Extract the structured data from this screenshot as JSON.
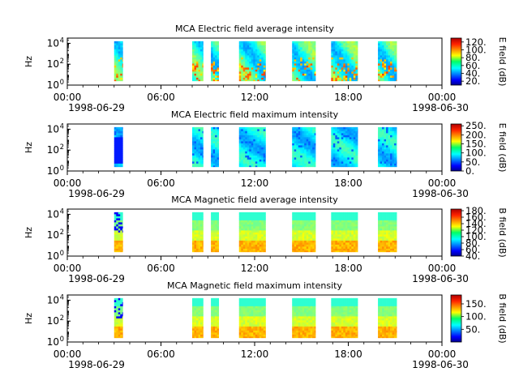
{
  "chart_data": [
    {
      "type": "heatmap",
      "title": "MCA  Electric field average intensity",
      "ylabel": "Hz",
      "colorbar_label": "E field (dB)",
      "colorbar_range": [
        10,
        130
      ],
      "colorbar_ticks": [
        "120.",
        "100.",
        "80.",
        "60.",
        "40.",
        "20."
      ],
      "colorbar_tick_values": [
        120,
        100,
        80,
        60,
        40,
        20
      ],
      "y_ticks": [
        {
          "mant": "10",
          "exp": "0"
        },
        {
          "mant": "10",
          "exp": "2"
        },
        {
          "mant": "10",
          "exp": "4"
        }
      ],
      "y_log_range": [
        0,
        4.5
      ],
      "x_ticks": [
        "00:00",
        "06:00",
        "12:00",
        "18:00",
        "00:00"
      ],
      "x_dates": [
        "1998-06-29",
        "1998-06-30"
      ],
      "data_intervals_utc_hours": [
        [
          3.0,
          3.55
        ],
        [
          8.0,
          8.7
        ],
        [
          9.2,
          9.7
        ],
        [
          11.0,
          12.7
        ],
        [
          14.4,
          15.9
        ],
        [
          16.9,
          18.6
        ],
        [
          19.9,
          21.1
        ]
      ],
      "data_log_hz_range": [
        0.4,
        4.2
      ],
      "intensity_profile": "bulk 40-60 dB (cyan to green), patches up to 80-100 dB near 10 Hz",
      "style": "E-avg"
    },
    {
      "type": "heatmap",
      "title": "MCA  Electric field maximum intensity",
      "ylabel": "Hz",
      "colorbar_label": "E field (dB)",
      "colorbar_range": [
        0,
        260
      ],
      "colorbar_ticks": [
        "250.",
        "200.",
        "150.",
        "100.",
        "50.",
        "0."
      ],
      "colorbar_tick_values": [
        250,
        200,
        150,
        100,
        50,
        0
      ],
      "y_ticks": [
        {
          "mant": "10",
          "exp": "0"
        },
        {
          "mant": "10",
          "exp": "2"
        },
        {
          "mant": "10",
          "exp": "4"
        }
      ],
      "y_log_range": [
        0,
        4.5
      ],
      "x_ticks": [
        "00:00",
        "06:00",
        "12:00",
        "18:00",
        "00:00"
      ],
      "x_dates": [
        "1998-06-29",
        "1998-06-30"
      ],
      "data_intervals_utc_hours": [
        [
          3.0,
          3.55
        ],
        [
          8.0,
          8.7
        ],
        [
          9.2,
          9.7
        ],
        [
          11.0,
          12.7
        ],
        [
          14.4,
          15.9
        ],
        [
          16.9,
          18.6
        ],
        [
          19.9,
          21.1
        ]
      ],
      "data_log_hz_range": [
        0.4,
        4.2
      ],
      "intensity_profile": "mostly 80-110 dB (cyan), blue streaks near 50-70 dB",
      "style": "E-max"
    },
    {
      "type": "heatmap",
      "title": "MCA  Magnetic field average intensity",
      "ylabel": "Hz",
      "colorbar_label": "B field (dB)",
      "colorbar_range": [
        40,
        185
      ],
      "colorbar_ticks": [
        "180.",
        "160.",
        "140.",
        "120.",
        "100.",
        "80.",
        "60.",
        "40."
      ],
      "colorbar_tick_values": [
        180,
        160,
        140,
        120,
        100,
        80,
        60,
        40
      ],
      "y_ticks": [
        {
          "mant": "10",
          "exp": "0"
        },
        {
          "mant": "10",
          "exp": "2"
        },
        {
          "mant": "10",
          "exp": "4"
        }
      ],
      "y_log_range": [
        0,
        4.5
      ],
      "x_ticks": [
        "00:00",
        "06:00",
        "12:00",
        "18:00",
        "00:00"
      ],
      "x_dates": [
        "1998-06-29",
        "1998-06-30"
      ],
      "data_intervals_utc_hours": [
        [
          3.0,
          3.55
        ],
        [
          8.0,
          8.7
        ],
        [
          9.2,
          9.7
        ],
        [
          11.0,
          12.7
        ],
        [
          14.4,
          15.9
        ],
        [
          16.9,
          18.6
        ],
        [
          19.9,
          21.1
        ]
      ],
      "data_log_hz_range": [
        0.4,
        4.2
      ],
      "intensity_profile": "cyan (~100 dB) above 1 kHz, green mid band, yellow-orange (~140-150 dB) below 100 Hz",
      "style": "B"
    },
    {
      "type": "heatmap",
      "title": "MCA  Magnetic field maximum intensity",
      "ylabel": "Hz",
      "colorbar_label": "B field (dB)",
      "colorbar_range": [
        0,
        185
      ],
      "colorbar_ticks": [
        "150.",
        "100.",
        "50."
      ],
      "colorbar_tick_values": [
        150,
        100,
        50
      ],
      "y_ticks": [
        {
          "mant": "10",
          "exp": "0"
        },
        {
          "mant": "10",
          "exp": "2"
        },
        {
          "mant": "10",
          "exp": "4"
        }
      ],
      "y_log_range": [
        0,
        4.5
      ],
      "x_ticks": [
        "00:00",
        "06:00",
        "12:00",
        "18:00",
        "00:00"
      ],
      "x_dates": [
        "1998-06-29",
        "1998-06-30"
      ],
      "data_intervals_utc_hours": [
        [
          3.0,
          3.55
        ],
        [
          8.0,
          8.7
        ],
        [
          9.2,
          9.7
        ],
        [
          11.0,
          12.7
        ],
        [
          14.4,
          15.9
        ],
        [
          16.9,
          18.6
        ],
        [
          19.9,
          21.1
        ]
      ],
      "data_log_hz_range": [
        0.4,
        4.2
      ],
      "intensity_profile": "cyan-green above 1 kHz, yellow-orange (~130-150 dB) at low frequency",
      "style": "B"
    }
  ]
}
